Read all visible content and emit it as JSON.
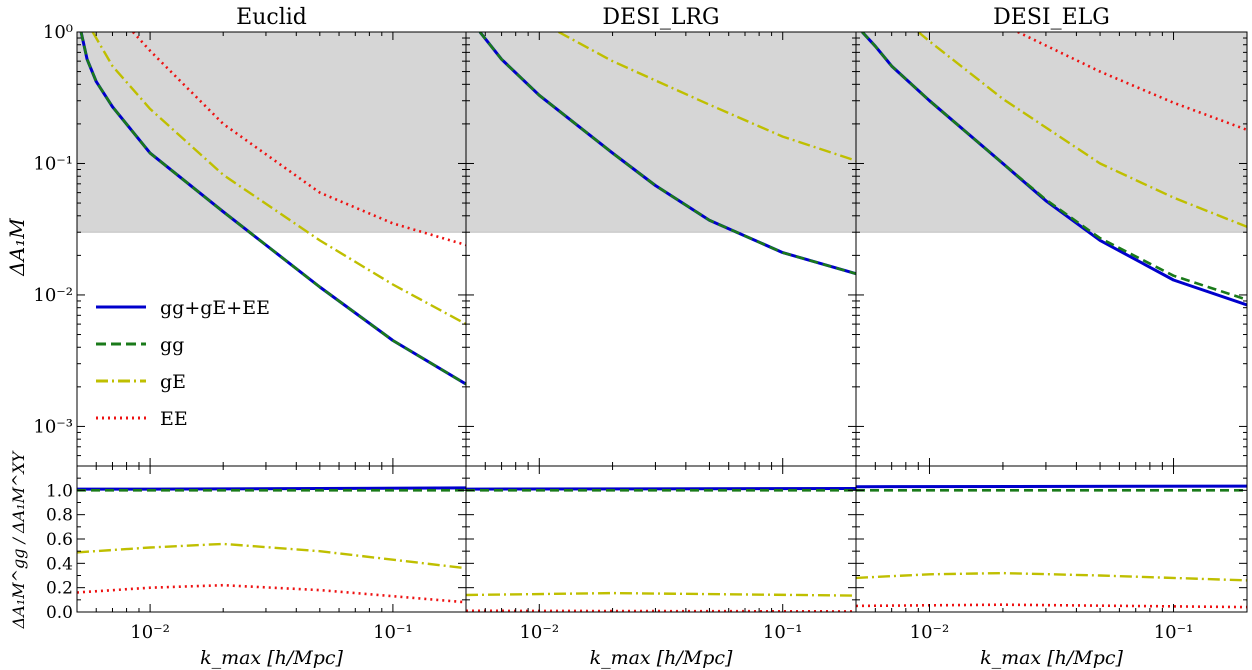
{
  "figure": {
    "ylabel_top": "ΔA₁M",
    "ylabel_bottom": "ΔA₁M^gg / ΔA₁M^XY",
    "xlabel": "k_max  [h/Mpc]"
  },
  "legend": {
    "entries": [
      {
        "label": "gg+gE+EE",
        "color": "#0000cc",
        "style": "solid"
      },
      {
        "label": "gg",
        "color": "#1a7a1a",
        "style": "dashed"
      },
      {
        "label": "gE",
        "color": "#bfbf00",
        "style": "dashdot"
      },
      {
        "label": "EE",
        "color": "#ee1111",
        "style": "dotted"
      }
    ]
  },
  "colors": {
    "shade": "#d6d6d6",
    "gg_gE_EE": "#0000cc",
    "gg": "#1a7a1a",
    "gE": "#bfbf00",
    "EE": "#ee1111"
  },
  "chart_data": [
    {
      "type": "line",
      "title": "Euclid",
      "xscale": "log",
      "yscale": "log",
      "xlim": [
        0.005,
        0.2
      ],
      "ylim": [
        0.0005,
        1
      ],
      "xticks": [
        {
          "value": 0.01,
          "label": "10⁻²"
        },
        {
          "value": 0.1,
          "label": "10⁻¹"
        }
      ],
      "yticks": [
        {
          "value": 1,
          "label": "10⁰"
        },
        {
          "value": 0.1,
          "label": "10⁻¹"
        },
        {
          "value": 0.01,
          "label": "10⁻²"
        },
        {
          "value": 0.001,
          "label": "10⁻³"
        }
      ],
      "shaded_region_y": [
        0.03,
        1
      ],
      "series": [
        {
          "name": "gg+gE+EE",
          "x": [
            0.0052,
            0.0055,
            0.006,
            0.007,
            0.01,
            0.02,
            0.03,
            0.05,
            0.1,
            0.2
          ],
          "y": [
            1.0,
            0.62,
            0.42,
            0.27,
            0.12,
            0.043,
            0.024,
            0.0115,
            0.0045,
            0.0021
          ]
        },
        {
          "name": "gg",
          "x": [
            0.0052,
            0.0055,
            0.006,
            0.007,
            0.01,
            0.02,
            0.03,
            0.05,
            0.1,
            0.2
          ],
          "y": [
            1.0,
            0.62,
            0.42,
            0.27,
            0.12,
            0.043,
            0.024,
            0.0115,
            0.0045,
            0.0021
          ]
        },
        {
          "name": "gE",
          "x": [
            0.0058,
            0.007,
            0.01,
            0.02,
            0.05,
            0.1,
            0.2
          ],
          "y": [
            1.0,
            0.55,
            0.26,
            0.082,
            0.026,
            0.012,
            0.006
          ]
        },
        {
          "name": "EE",
          "x": [
            0.0085,
            0.01,
            0.02,
            0.05,
            0.1,
            0.2
          ],
          "y": [
            1.0,
            0.72,
            0.2,
            0.06,
            0.035,
            0.024
          ]
        }
      ],
      "bottom": {
        "ylim": [
          0,
          1.2
        ],
        "yticks": [
          0.0,
          0.2,
          0.4,
          0.6,
          0.8,
          1.0
        ],
        "ytick_labels": [
          "0.0",
          "0.2",
          "0.4",
          "0.6",
          "0.8",
          "1.0"
        ],
        "series": [
          {
            "name": "gg+gE+EE",
            "x": [
              0.005,
              0.01,
              0.05,
              0.2
            ],
            "y": [
              1.01,
              1.01,
              1.015,
              1.02
            ]
          },
          {
            "name": "gg",
            "x": [
              0.005,
              0.2
            ],
            "y": [
              1.0,
              1.0
            ]
          },
          {
            "name": "gE",
            "x": [
              0.005,
              0.01,
              0.02,
              0.05,
              0.1,
              0.2
            ],
            "y": [
              0.49,
              0.53,
              0.56,
              0.5,
              0.43,
              0.36
            ]
          },
          {
            "name": "EE",
            "x": [
              0.005,
              0.01,
              0.02,
              0.05,
              0.1,
              0.2
            ],
            "y": [
              0.16,
              0.2,
              0.22,
              0.18,
              0.13,
              0.08
            ]
          }
        ]
      }
    },
    {
      "type": "line",
      "title": "DESI_LRG",
      "xscale": "log",
      "yscale": "log",
      "xlim": [
        0.005,
        0.2
      ],
      "ylim": [
        0.0005,
        1
      ],
      "xticks": [
        {
          "value": 0.01,
          "label": "10⁻²"
        },
        {
          "value": 0.1,
          "label": "10⁻¹"
        }
      ],
      "shaded_region_y": [
        0.03,
        1
      ],
      "series": [
        {
          "name": "gg+gE+EE",
          "x": [
            0.0057,
            0.007,
            0.01,
            0.02,
            0.03,
            0.05,
            0.1,
            0.2
          ],
          "y": [
            1.0,
            0.62,
            0.33,
            0.12,
            0.068,
            0.037,
            0.021,
            0.0145
          ]
        },
        {
          "name": "gg",
          "x": [
            0.0057,
            0.007,
            0.01,
            0.02,
            0.03,
            0.05,
            0.1,
            0.2
          ],
          "y": [
            1.0,
            0.62,
            0.33,
            0.12,
            0.068,
            0.037,
            0.021,
            0.0145
          ]
        },
        {
          "name": "gE",
          "x": [
            0.012,
            0.02,
            0.05,
            0.1,
            0.2
          ],
          "y": [
            1.0,
            0.6,
            0.28,
            0.16,
            0.105
          ]
        }
      ],
      "bottom": {
        "ylim": [
          0,
          1.2
        ],
        "series": [
          {
            "name": "gg+gE+EE",
            "x": [
              0.005,
              0.2
            ],
            "y": [
              1.01,
              1.015
            ]
          },
          {
            "name": "gg",
            "x": [
              0.005,
              0.2
            ],
            "y": [
              1.0,
              1.0
            ]
          },
          {
            "name": "gE",
            "x": [
              0.005,
              0.02,
              0.2
            ],
            "y": [
              0.14,
              0.155,
              0.135
            ]
          },
          {
            "name": "EE",
            "x": [
              0.005,
              0.2
            ],
            "y": [
              0.01,
              0.005
            ]
          }
        ]
      }
    },
    {
      "type": "line",
      "title": "DESI_ELG",
      "xscale": "log",
      "yscale": "log",
      "xlim": [
        0.005,
        0.2
      ],
      "ylim": [
        0.0005,
        1
      ],
      "xticks": [
        {
          "value": 0.01,
          "label": "10⁻²"
        },
        {
          "value": 0.1,
          "label": "10⁻¹"
        }
      ],
      "shaded_region_y": [
        0.03,
        1
      ],
      "series": [
        {
          "name": "gg+gE+EE",
          "x": [
            0.0053,
            0.006,
            0.007,
            0.01,
            0.02,
            0.03,
            0.05,
            0.1,
            0.2
          ],
          "y": [
            1.0,
            0.78,
            0.55,
            0.3,
            0.1,
            0.052,
            0.026,
            0.013,
            0.0084
          ]
        },
        {
          "name": "gg",
          "x": [
            0.0053,
            0.006,
            0.007,
            0.01,
            0.02,
            0.03,
            0.05,
            0.1,
            0.2
          ],
          "y": [
            1.0,
            0.78,
            0.55,
            0.3,
            0.1,
            0.053,
            0.027,
            0.014,
            0.0092
          ]
        },
        {
          "name": "gE",
          "x": [
            0.009,
            0.01,
            0.02,
            0.05,
            0.1,
            0.2
          ],
          "y": [
            1.0,
            0.85,
            0.31,
            0.1,
            0.055,
            0.033
          ]
        },
        {
          "name": "EE",
          "x": [
            0.023,
            0.05,
            0.1,
            0.2
          ],
          "y": [
            1.0,
            0.5,
            0.29,
            0.18
          ]
        }
      ],
      "bottom": {
        "ylim": [
          0,
          1.2
        ],
        "series": [
          {
            "name": "gg+gE+EE",
            "x": [
              0.005,
              0.2
            ],
            "y": [
              1.03,
              1.035
            ]
          },
          {
            "name": "gg",
            "x": [
              0.005,
              0.2
            ],
            "y": [
              1.0,
              1.0
            ]
          },
          {
            "name": "gE",
            "x": [
              0.005,
              0.01,
              0.02,
              0.05,
              0.2
            ],
            "y": [
              0.28,
              0.31,
              0.32,
              0.3,
              0.26
            ]
          },
          {
            "name": "EE",
            "x": [
              0.005,
              0.02,
              0.2
            ],
            "y": [
              0.05,
              0.06,
              0.04
            ]
          }
        ]
      }
    }
  ]
}
